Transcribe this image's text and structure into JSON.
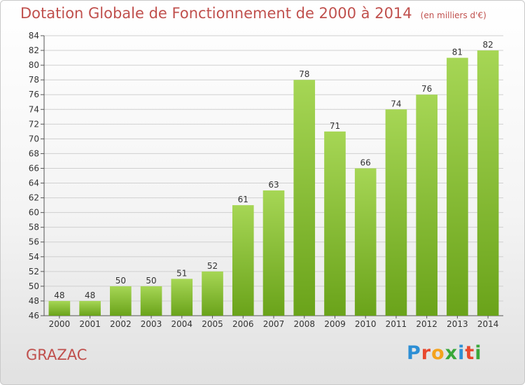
{
  "header": {
    "title": "Dotation Globale de Fonctionnement de 2000 à 2014",
    "unit": "(en milliers d'€)"
  },
  "footer": {
    "commune": "GRAZAC",
    "logo": [
      "P",
      "r",
      "o",
      "x",
      "i",
      "t",
      "i"
    ],
    "logo_colors": [
      "#2d8fd5",
      "#e8482e",
      "#f4a31d",
      "#3aa83a",
      "#2d8fd5",
      "#e8482e",
      "#3aa83a"
    ]
  },
  "colors": {
    "bar_light": "#a6d655",
    "bar_dark": "#6aa31a",
    "title": "#c0504d",
    "grid": "#d0d0d0"
  },
  "chart_data": {
    "type": "bar",
    "title": "Dotation Globale de Fonctionnement de 2000 à 2014",
    "categories": [
      "2000",
      "2001",
      "2002",
      "2003",
      "2004",
      "2005",
      "2006",
      "2007",
      "2008",
      "2009",
      "2010",
      "2011",
      "2012",
      "2013",
      "2014"
    ],
    "values": [
      48,
      48,
      50,
      50,
      51,
      52,
      61,
      63,
      78,
      71,
      66,
      74,
      76,
      81,
      82
    ],
    "ylim": [
      46,
      84
    ],
    "yticks": [
      46,
      48,
      50,
      52,
      54,
      56,
      58,
      60,
      62,
      64,
      66,
      68,
      70,
      72,
      74,
      76,
      78,
      80,
      82,
      84
    ],
    "grid": true,
    "legend": "none"
  }
}
